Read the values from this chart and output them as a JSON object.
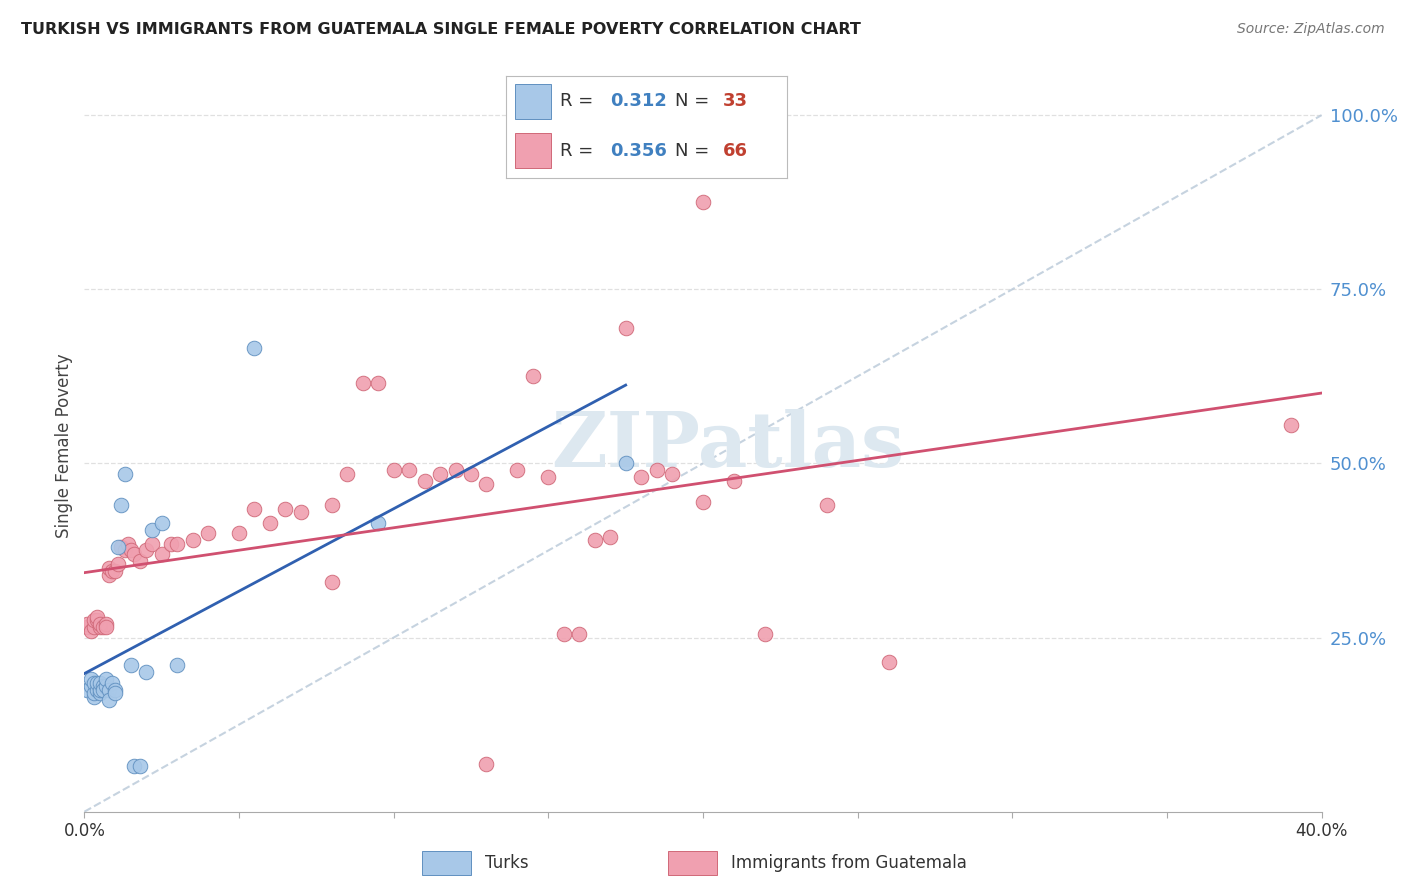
{
  "title": "TURKISH VS IMMIGRANTS FROM GUATEMALA SINGLE FEMALE POVERTY CORRELATION CHART",
  "source": "Source: ZipAtlas.com",
  "ylabel": "Single Female Poverty",
  "ylabel_right_ticks": [
    "100.0%",
    "75.0%",
    "50.0%",
    "25.0%"
  ],
  "ylabel_right_vals": [
    1.0,
    0.75,
    0.5,
    0.25
  ],
  "xlim": [
    0.0,
    0.4
  ],
  "ylim": [
    0.0,
    1.05
  ],
  "legend_blue_R": "0.312",
  "legend_blue_N": "33",
  "legend_pink_R": "0.356",
  "legend_pink_N": "66",
  "turks_x": [
    0.001,
    0.002,
    0.002,
    0.003,
    0.003,
    0.003,
    0.004,
    0.004,
    0.005,
    0.005,
    0.005,
    0.006,
    0.006,
    0.007,
    0.007,
    0.008,
    0.008,
    0.009,
    0.01,
    0.01,
    0.011,
    0.012,
    0.013,
    0.015,
    0.016,
    0.018,
    0.02,
    0.022,
    0.025,
    0.03,
    0.055,
    0.095,
    0.175
  ],
  "turks_y": [
    0.175,
    0.18,
    0.19,
    0.165,
    0.17,
    0.185,
    0.175,
    0.185,
    0.17,
    0.175,
    0.185,
    0.18,
    0.175,
    0.18,
    0.19,
    0.175,
    0.16,
    0.185,
    0.175,
    0.17,
    0.38,
    0.44,
    0.485,
    0.21,
    0.065,
    0.065,
    0.2,
    0.405,
    0.415,
    0.21,
    0.665,
    0.415,
    0.5
  ],
  "guatemala_x": [
    0.001,
    0.001,
    0.002,
    0.003,
    0.003,
    0.004,
    0.004,
    0.005,
    0.005,
    0.006,
    0.007,
    0.007,
    0.008,
    0.008,
    0.009,
    0.01,
    0.011,
    0.012,
    0.013,
    0.014,
    0.015,
    0.016,
    0.018,
    0.02,
    0.022,
    0.025,
    0.028,
    0.03,
    0.035,
    0.04,
    0.05,
    0.055,
    0.06,
    0.065,
    0.07,
    0.08,
    0.085,
    0.09,
    0.095,
    0.1,
    0.105,
    0.11,
    0.115,
    0.12,
    0.125,
    0.13,
    0.14,
    0.145,
    0.15,
    0.155,
    0.16,
    0.165,
    0.17,
    0.175,
    0.18,
    0.185,
    0.19,
    0.2,
    0.21,
    0.22,
    0.24,
    0.26,
    0.2,
    0.13,
    0.39,
    0.08
  ],
  "guatemala_y": [
    0.265,
    0.27,
    0.26,
    0.265,
    0.275,
    0.275,
    0.28,
    0.265,
    0.27,
    0.265,
    0.27,
    0.265,
    0.34,
    0.35,
    0.345,
    0.345,
    0.355,
    0.38,
    0.375,
    0.385,
    0.375,
    0.37,
    0.36,
    0.375,
    0.385,
    0.37,
    0.385,
    0.385,
    0.39,
    0.4,
    0.4,
    0.435,
    0.415,
    0.435,
    0.43,
    0.44,
    0.485,
    0.615,
    0.615,
    0.49,
    0.49,
    0.475,
    0.485,
    0.49,
    0.485,
    0.47,
    0.49,
    0.625,
    0.48,
    0.255,
    0.255,
    0.39,
    0.395,
    0.695,
    0.48,
    0.49,
    0.485,
    0.445,
    0.475,
    0.255,
    0.44,
    0.215,
    0.875,
    0.068,
    0.555,
    0.33
  ],
  "blue_color": "#a8c8e8",
  "blue_edge_color": "#6090c0",
  "pink_color": "#f0a0b0",
  "pink_edge_color": "#d06878",
  "blue_line_color": "#3060b0",
  "pink_line_color": "#d05070",
  "dashed_line_color": "#b8c8d8",
  "watermark_color": "#dde8f0",
  "background_color": "#ffffff",
  "grid_color": "#e0e0e0"
}
